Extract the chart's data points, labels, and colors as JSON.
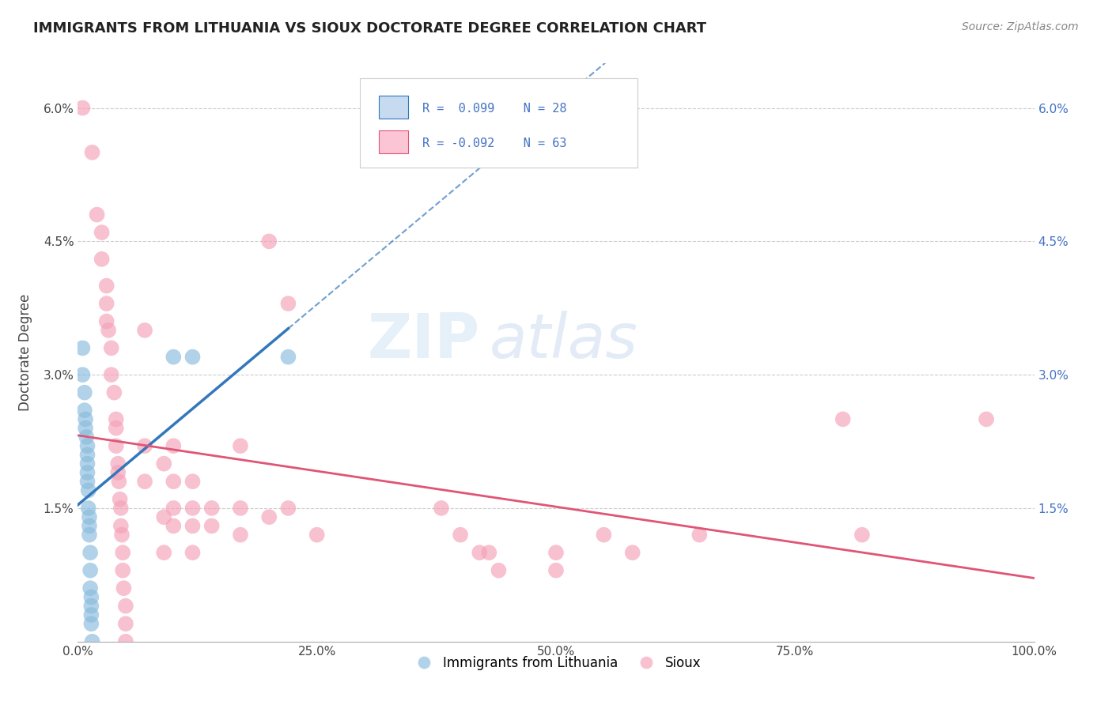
{
  "title": "IMMIGRANTS FROM LITHUANIA VS SIOUX DOCTORATE DEGREE CORRELATION CHART",
  "source_text": "Source: ZipAtlas.com",
  "ylabel": "Doctorate Degree",
  "xlim": [
    0,
    1.0
  ],
  "ylim": [
    0,
    0.065
  ],
  "yticks": [
    0.0,
    0.015,
    0.03,
    0.045,
    0.06
  ],
  "ytick_labels": [
    "",
    "1.5%",
    "3.0%",
    "4.5%",
    "6.0%"
  ],
  "xtick_labels": [
    "0.0%",
    "25.0%",
    "50.0%",
    "75.0%",
    "100.0%"
  ],
  "xticks": [
    0,
    0.25,
    0.5,
    0.75,
    1.0
  ],
  "watermark_zip": "ZIP",
  "watermark_atlas": "atlas",
  "color_blue": "#88bbdd",
  "color_pink": "#f4a0b8",
  "color_blue_line": "#3377bb",
  "color_pink_line": "#e05575",
  "color_blue_fill": "#c6dbef",
  "color_pink_fill": "#fcc5d5",
  "blue_points": [
    [
      0.005,
      0.033
    ],
    [
      0.005,
      0.03
    ],
    [
      0.007,
      0.028
    ],
    [
      0.007,
      0.026
    ],
    [
      0.008,
      0.025
    ],
    [
      0.008,
      0.024
    ],
    [
      0.009,
      0.023
    ],
    [
      0.01,
      0.022
    ],
    [
      0.01,
      0.021
    ],
    [
      0.01,
      0.02
    ],
    [
      0.01,
      0.019
    ],
    [
      0.01,
      0.018
    ],
    [
      0.011,
      0.017
    ],
    [
      0.011,
      0.015
    ],
    [
      0.012,
      0.014
    ],
    [
      0.012,
      0.013
    ],
    [
      0.012,
      0.012
    ],
    [
      0.013,
      0.01
    ],
    [
      0.013,
      0.008
    ],
    [
      0.013,
      0.006
    ],
    [
      0.014,
      0.005
    ],
    [
      0.014,
      0.004
    ],
    [
      0.014,
      0.003
    ],
    [
      0.014,
      0.002
    ],
    [
      0.015,
      0.0
    ],
    [
      0.1,
      0.032
    ],
    [
      0.12,
      0.032
    ],
    [
      0.22,
      0.032
    ]
  ],
  "pink_points": [
    [
      0.005,
      0.06
    ],
    [
      0.015,
      0.055
    ],
    [
      0.02,
      0.048
    ],
    [
      0.025,
      0.046
    ],
    [
      0.025,
      0.043
    ],
    [
      0.03,
      0.04
    ],
    [
      0.03,
      0.038
    ],
    [
      0.03,
      0.036
    ],
    [
      0.032,
      0.035
    ],
    [
      0.035,
      0.033
    ],
    [
      0.035,
      0.03
    ],
    [
      0.038,
      0.028
    ],
    [
      0.04,
      0.025
    ],
    [
      0.04,
      0.024
    ],
    [
      0.04,
      0.022
    ],
    [
      0.042,
      0.02
    ],
    [
      0.042,
      0.019
    ],
    [
      0.043,
      0.018
    ],
    [
      0.044,
      0.016
    ],
    [
      0.045,
      0.015
    ],
    [
      0.045,
      0.013
    ],
    [
      0.046,
      0.012
    ],
    [
      0.047,
      0.01
    ],
    [
      0.047,
      0.008
    ],
    [
      0.048,
      0.006
    ],
    [
      0.05,
      0.004
    ],
    [
      0.05,
      0.002
    ],
    [
      0.05,
      0.0
    ],
    [
      0.07,
      0.035
    ],
    [
      0.07,
      0.022
    ],
    [
      0.07,
      0.018
    ],
    [
      0.09,
      0.02
    ],
    [
      0.09,
      0.014
    ],
    [
      0.09,
      0.01
    ],
    [
      0.1,
      0.022
    ],
    [
      0.1,
      0.018
    ],
    [
      0.1,
      0.015
    ],
    [
      0.1,
      0.013
    ],
    [
      0.12,
      0.018
    ],
    [
      0.12,
      0.015
    ],
    [
      0.12,
      0.013
    ],
    [
      0.12,
      0.01
    ],
    [
      0.14,
      0.015
    ],
    [
      0.14,
      0.013
    ],
    [
      0.17,
      0.022
    ],
    [
      0.17,
      0.015
    ],
    [
      0.17,
      0.012
    ],
    [
      0.2,
      0.045
    ],
    [
      0.2,
      0.014
    ],
    [
      0.22,
      0.038
    ],
    [
      0.22,
      0.015
    ],
    [
      0.25,
      0.012
    ],
    [
      0.38,
      0.015
    ],
    [
      0.4,
      0.012
    ],
    [
      0.42,
      0.01
    ],
    [
      0.43,
      0.01
    ],
    [
      0.44,
      0.008
    ],
    [
      0.5,
      0.01
    ],
    [
      0.5,
      0.008
    ],
    [
      0.55,
      0.012
    ],
    [
      0.58,
      0.01
    ],
    [
      0.65,
      0.012
    ],
    [
      0.8,
      0.025
    ],
    [
      0.82,
      0.012
    ],
    [
      0.95,
      0.025
    ]
  ]
}
